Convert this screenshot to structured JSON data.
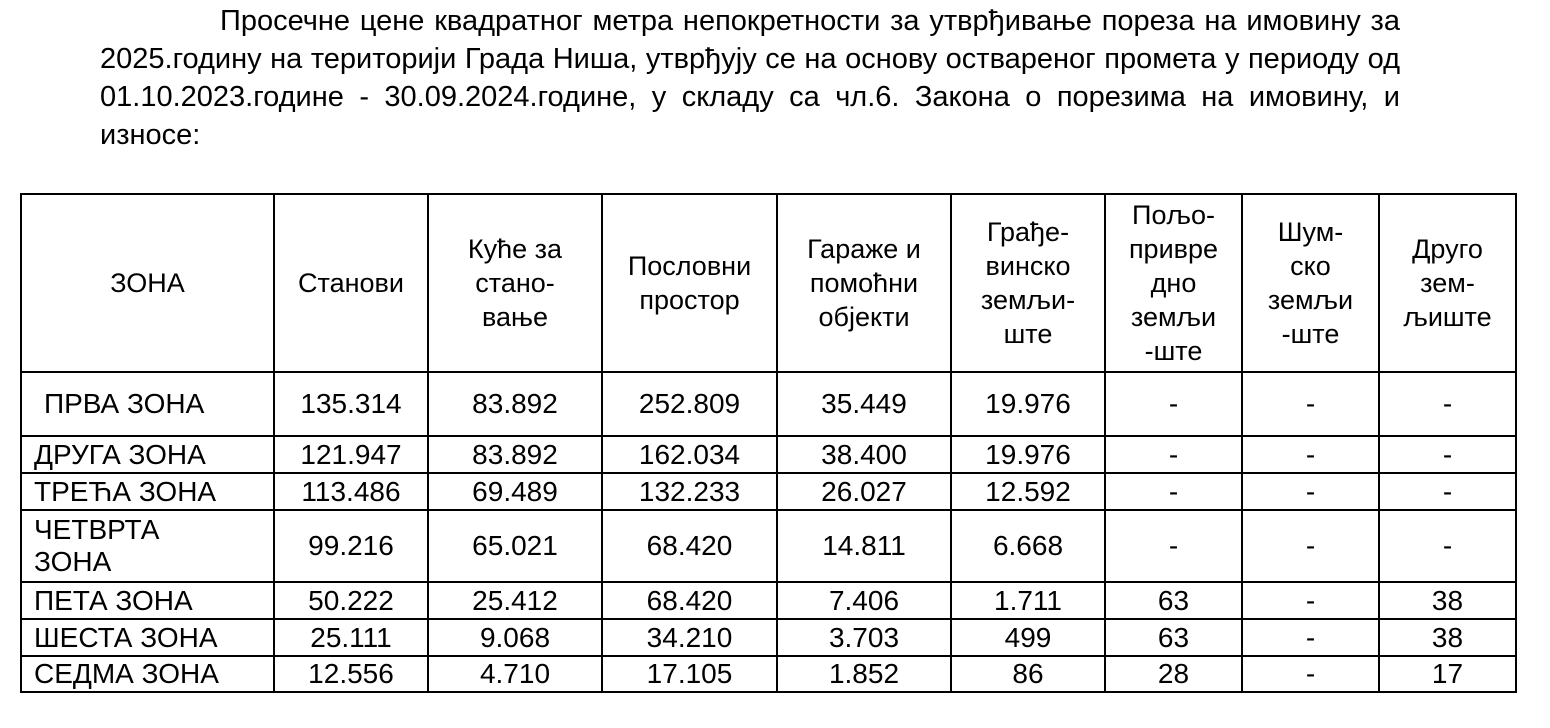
{
  "intro": {
    "text": "Просечне цене квадратног метра непокретности за утврђивање пореза на имовину за 2025.годину на територији Града Ниша, утврђују се на основу оствареног промета у периоду од 01.10.2023.године  - 30.09.2024.године, у складу са чл.6. Закона о порезима на имовину, и износе:"
  },
  "table": {
    "headers": [
      "ЗОНА",
      "Станови",
      "Куће за\nстано-\nвање",
      "Пословни\nпростор",
      "Гараже и\nпомоћни\nобјекти",
      "Грађе-\nвинско\nземљи-\nште",
      "Пољо-\nпривре\nдно\nземљи\n-ште",
      "Шум-\nско\nземљи\n-ште",
      "Друго\nзем-\nљиште"
    ],
    "rows": [
      [
        "ПРВА ЗОНА",
        "135.314",
        "83.892",
        "252.809",
        "35.449",
        "19.976",
        "-",
        "-",
        "-"
      ],
      [
        "ДРУГА ЗОНА",
        "121.947",
        "83.892",
        "162.034",
        "38.400",
        "19.976",
        "-",
        "-",
        "-"
      ],
      [
        "ТРЕЋА ЗОНА",
        "113.486",
        "69.489",
        "132.233",
        "26.027",
        "12.592",
        "-",
        "-",
        "-"
      ],
      [
        "ЧЕТВРТА\nЗОНА",
        "99.216",
        "65.021",
        "68.420",
        "14.811",
        "6.668",
        "-",
        "-",
        "-"
      ],
      [
        "ПЕТА ЗОНА",
        "50.222",
        "25.412",
        "68.420",
        "7.406",
        "1.711",
        "63",
        "-",
        "38"
      ],
      [
        "ШЕСТА ЗОНА",
        "25.111",
        "9.068",
        "34.210",
        "3.703",
        "499",
        "63",
        "-",
        "38"
      ],
      [
        "СЕДМА ЗОНА",
        "12.556",
        "4.710",
        "17.105",
        "1.852",
        "86",
        "28",
        "-",
        "17"
      ]
    ]
  }
}
